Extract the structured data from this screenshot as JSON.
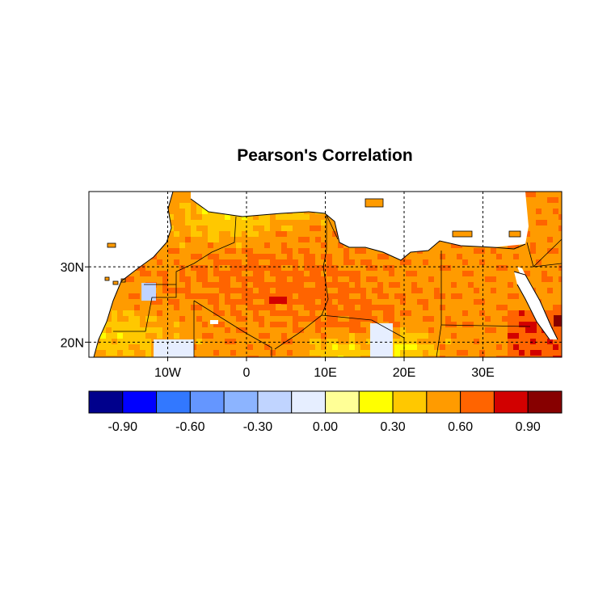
{
  "title": "Pearson's Correlation",
  "map": {
    "region": "North Africa",
    "lon_range": [
      -20,
      40
    ],
    "lat_range": [
      18,
      40
    ],
    "x_tick_labels": [
      {
        "lon": -10,
        "label": "10W"
      },
      {
        "lon": 0,
        "label": "0"
      },
      {
        "lon": 10,
        "label": "10E"
      },
      {
        "lon": 20,
        "label": "20E"
      },
      {
        "lon": 30,
        "label": "30E"
      }
    ],
    "y_tick_labels": [
      {
        "lat": 30,
        "label": "30N"
      },
      {
        "lat": 20,
        "label": "20N"
      }
    ],
    "grid": "dashed",
    "missing_color": "#ffffff"
  },
  "colorbar": {
    "colors": [
      "#00008c",
      "#0000ff",
      "#3278ff",
      "#6496ff",
      "#8cb4ff",
      "#c0d4ff",
      "#e6eeff",
      "#ffff96",
      "#ffff00",
      "#ffc800",
      "#ff9b00",
      "#ff6400",
      "#d20000",
      "#870000"
    ],
    "labels": [
      "-0.90",
      "-0.60",
      "-0.30",
      "0.00",
      "0.30",
      "0.60",
      "0.90"
    ]
  }
}
